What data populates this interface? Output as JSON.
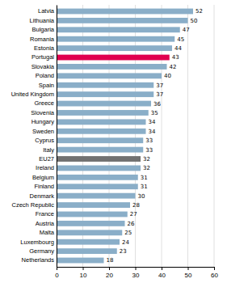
{
  "chart_data": {
    "type": "bar",
    "orientation": "horizontal",
    "categories": [
      "Netherlands",
      "Germany",
      "Luxembourg",
      "Malta",
      "Austria",
      "France",
      "Czech Republic",
      "Denmark",
      "Finland",
      "Belgium",
      "Ireland",
      "EU27",
      "Italy",
      "Cyprus",
      "Sweden",
      "Hungary",
      "Slovenia",
      "Greece",
      "United Kingdom",
      "Spain",
      "Poland",
      "Slovakia",
      "Portugal",
      "Estonia",
      "Romania",
      "Bulgaria",
      "Lithuania",
      "Latvia"
    ],
    "values": [
      18,
      23,
      24,
      25,
      26,
      27,
      28,
      30,
      31,
      31,
      32,
      32,
      33,
      33,
      34,
      34,
      35,
      36,
      37,
      37,
      40,
      42,
      43,
      44,
      45,
      47,
      50,
      52
    ],
    "colors": [
      "#8aaec8",
      "#8aaec8",
      "#8aaec8",
      "#8aaec8",
      "#8aaec8",
      "#8aaec8",
      "#8aaec8",
      "#8aaec8",
      "#8aaec8",
      "#8aaec8",
      "#8aaec8",
      "#717171",
      "#8aaec8",
      "#8aaec8",
      "#8aaec8",
      "#8aaec8",
      "#8aaec8",
      "#8aaec8",
      "#8aaec8",
      "#8aaec8",
      "#8aaec8",
      "#8aaec8",
      "#e0004e",
      "#8aaec8",
      "#8aaec8",
      "#8aaec8",
      "#8aaec8",
      "#8aaec8"
    ],
    "xlim": [
      0,
      60
    ],
    "xticks": [
      0,
      10,
      20,
      30,
      40,
      50,
      60
    ],
    "grid": true,
    "data_labels": true
  }
}
